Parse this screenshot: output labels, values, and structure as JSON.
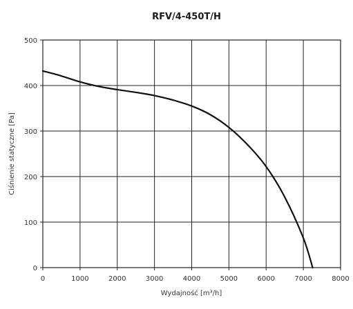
{
  "chart_data": {
    "type": "line",
    "title": "RFV/4-450T/H",
    "xlabel": "Wydajność [m³/h]",
    "ylabel": "Ciśnienie statyczne [Pa]",
    "xlim": [
      0,
      8000
    ],
    "ylim": [
      0,
      500
    ],
    "xticks": [
      0,
      1000,
      2000,
      3000,
      4000,
      5000,
      6000,
      7000,
      8000
    ],
    "yticks": [
      0,
      100,
      200,
      300,
      400,
      500
    ],
    "grid": true,
    "series": [
      {
        "x": [
          0,
          500,
          1000,
          1500,
          2000,
          2500,
          3000,
          3500,
          4000,
          4500,
          5000,
          5500,
          6000,
          6500,
          7000,
          7250
        ],
        "y": [
          432,
          421,
          408,
          398,
          391,
          385,
          378,
          368,
          355,
          336,
          308,
          270,
          222,
          155,
          65,
          0
        ]
      }
    ]
  }
}
